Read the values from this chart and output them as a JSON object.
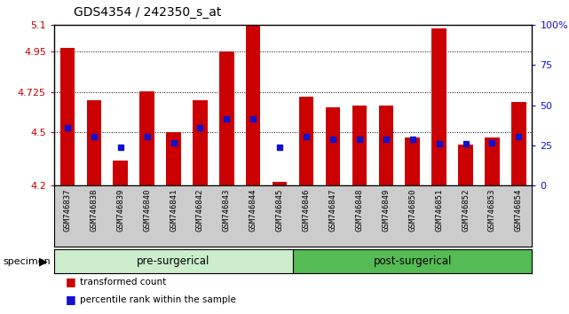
{
  "title": "GDS4354 / 242350_s_at",
  "specimens": [
    "GSM746837",
    "GSM746838",
    "GSM746839",
    "GSM746840",
    "GSM746841",
    "GSM746842",
    "GSM746843",
    "GSM746844",
    "GSM746845",
    "GSM746846",
    "GSM746847",
    "GSM746848",
    "GSM746849",
    "GSM746850",
    "GSM746851",
    "GSM746852",
    "GSM746853",
    "GSM746854"
  ],
  "red_values": [
    4.97,
    4.68,
    4.34,
    4.73,
    4.5,
    4.68,
    4.95,
    5.1,
    4.22,
    4.7,
    4.64,
    4.65,
    4.65,
    4.47,
    5.08,
    4.43,
    4.47,
    4.67
  ],
  "blue_values": [
    4.525,
    4.475,
    4.415,
    4.475,
    4.44,
    4.525,
    4.575,
    4.575,
    4.415,
    4.475,
    4.46,
    4.46,
    4.46,
    4.46,
    4.435,
    4.435,
    4.44,
    4.475
  ],
  "ymin": 4.2,
  "ymax": 5.1,
  "yticks_left": [
    4.2,
    4.5,
    4.725,
    4.95,
    5.1
  ],
  "yticks_left_labels": [
    "4.2",
    "4.5",
    "4.725",
    "4.95",
    "5.1"
  ],
  "gridlines": [
    4.95,
    4.725,
    4.5
  ],
  "right_pcts": [
    0,
    25,
    50,
    75,
    100
  ],
  "right_labels": [
    "0",
    "25",
    "50",
    "75",
    "100%"
  ],
  "pre_surgical_count": 9,
  "post_surgical_count": 9,
  "bar_color": "#cc0000",
  "blue_color": "#1111cc",
  "baseline": 4.2,
  "legend_red": "transformed count",
  "legend_blue": "percentile rank within the sample",
  "group_label_pre": "pre-surgerical",
  "group_label_post": "post-surgerical",
  "specimen_label": "specimen",
  "pre_color": "#cceecc",
  "post_color": "#55bb55",
  "tick_bg_color": "#cccccc"
}
